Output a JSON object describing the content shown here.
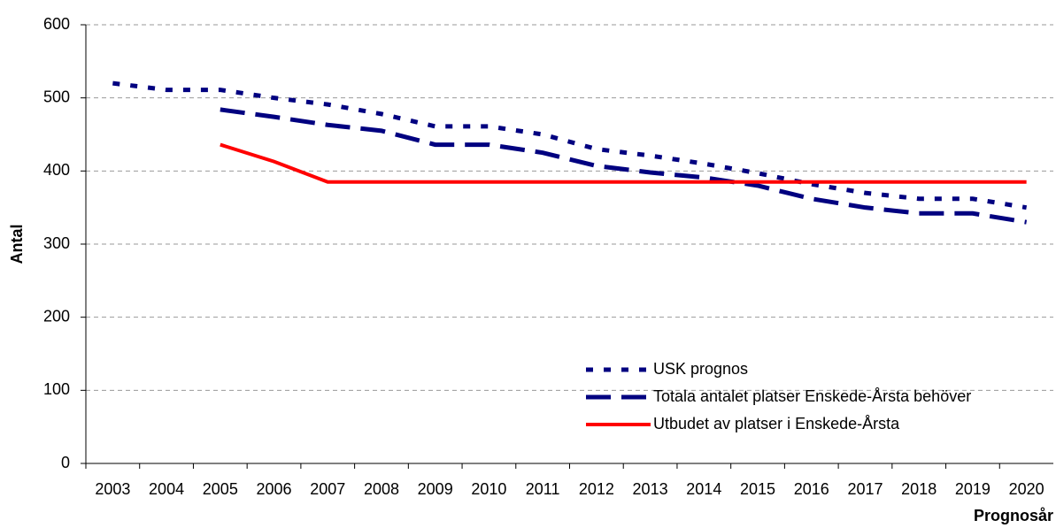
{
  "chart_data": {
    "type": "line",
    "y_label": "Antal",
    "x_label": "Prognosår",
    "categories": [
      "2003",
      "2004",
      "2005",
      "2006",
      "2007",
      "2008",
      "2009",
      "2010",
      "2011",
      "2012",
      "2013",
      "2014",
      "2015",
      "2016",
      "2017",
      "2018",
      "2019",
      "2020"
    ],
    "series": [
      {
        "name": "USK prognos",
        "color": "#000080",
        "style": "dotted",
        "values": [
          520,
          511,
          511,
          500,
          491,
          478,
          461,
          461,
          450,
          430,
          421,
          410,
          397,
          382,
          370,
          362,
          362,
          350
        ]
      },
      {
        "name": "Totala antalet platser Enskede-Årsta behöver",
        "color": "#000080",
        "style": "dashed",
        "values": [
          null,
          null,
          484,
          474,
          463,
          455,
          436,
          436,
          425,
          407,
          398,
          391,
          380,
          362,
          350,
          342,
          342,
          330
        ]
      },
      {
        "name": "Utbudet av platser i Enskede-Årsta",
        "color": "#ff0000",
        "style": "solid",
        "values": [
          null,
          null,
          436,
          413,
          385,
          385,
          385,
          385,
          385,
          385,
          385,
          385,
          385,
          385,
          385,
          385,
          385,
          385
        ]
      }
    ],
    "ylim": [
      0,
      600
    ],
    "yticks": [
      0,
      100,
      200,
      300,
      400,
      500,
      600
    ],
    "grid": true
  }
}
